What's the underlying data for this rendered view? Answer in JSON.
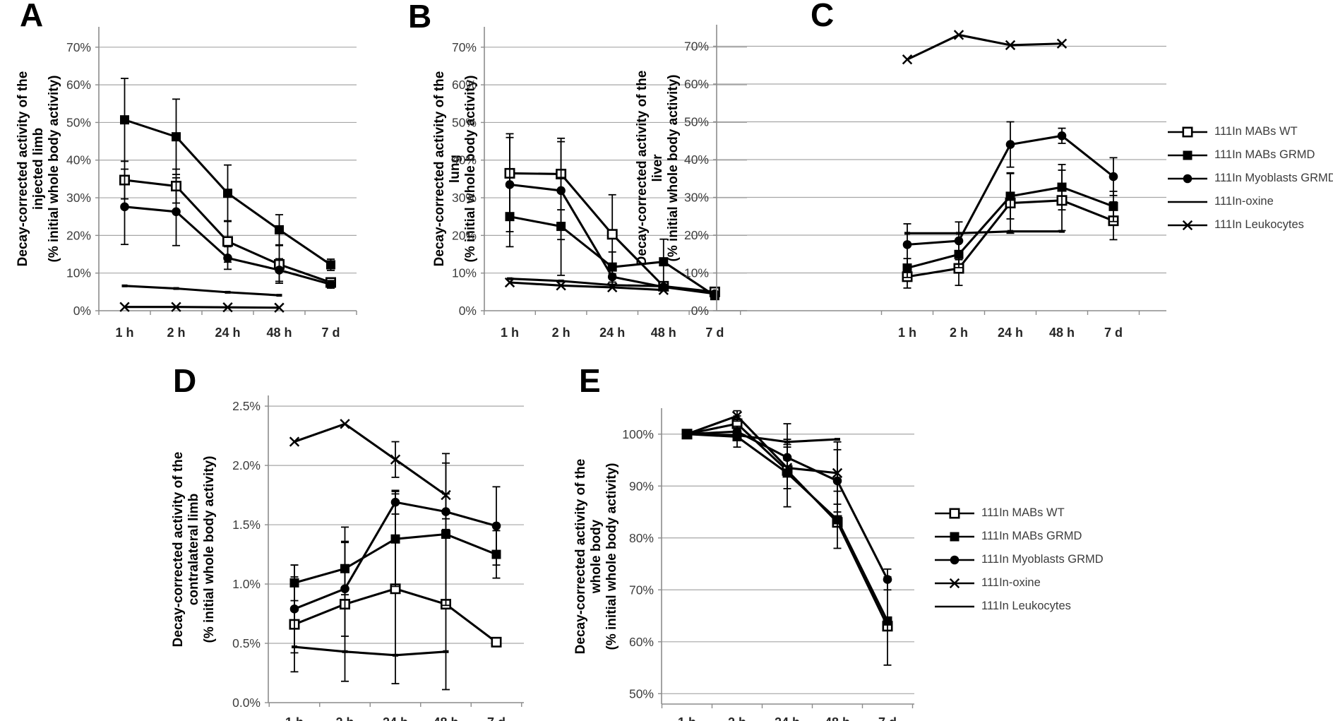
{
  "figure": {
    "background": "#ffffff"
  },
  "x_categories": [
    "1 h",
    "2 h",
    "24 h",
    "48 h",
    "7 d"
  ],
  "colors": {
    "series": "#000000",
    "gridline": "#a6a6a6",
    "axis": "#8c8c8c",
    "tick_text": "#3d3d3d"
  },
  "legends": [
    {
      "name": "legend-top",
      "items": [
        {
          "label": "111In MABs WT",
          "marker": "square-open"
        },
        {
          "label": "111In MABs GRMD",
          "marker": "square-filled"
        },
        {
          "label": "111In Myoblasts GRMD",
          "marker": "circle-filled"
        },
        {
          "label": "111In-oxine",
          "marker": "none"
        },
        {
          "label": "111In Leukocytes",
          "marker": "x"
        }
      ]
    },
    {
      "name": "legend-bottom",
      "items": [
        {
          "label": "111In MABs WT",
          "marker": "square-open"
        },
        {
          "label": "111In MABs GRMD",
          "marker": "square-filled"
        },
        {
          "label": "111In Myoblasts GRMD",
          "marker": "circle-filled"
        },
        {
          "label": "111In-oxine",
          "marker": "x"
        },
        {
          "label": "111In Leukocytes",
          "marker": "none"
        }
      ]
    }
  ],
  "chart_data": [
    {
      "panel": "A",
      "type": "line",
      "grid": true,
      "ylabel_lines": [
        "Decay-corrected  activity of the",
        "injected limb",
        "(% initial whole body activity)"
      ],
      "yticks": {
        "labels": [
          "0%",
          "10%",
          "20%",
          "30%",
          "40%",
          "50%",
          "60%",
          "70%"
        ],
        "values": [
          0,
          10,
          20,
          30,
          40,
          50,
          60,
          70
        ]
      },
      "ylim": [
        0,
        75.4
      ],
      "series": [
        {
          "name": "111In MABs WT",
          "marker": "square-open",
          "values": [
            34.7,
            33.1,
            18.4,
            12.3,
            7.5
          ],
          "err": [
            5,
            4.5,
            5.5,
            5,
            1
          ]
        },
        {
          "name": "111In MABs GRMD",
          "marker": "square-filled",
          "values": [
            50.7,
            46.2,
            31.2,
            21.5,
            12.2
          ],
          "err": [
            11,
            10,
            7.5,
            4,
            1.5
          ]
        },
        {
          "name": "111In Myoblasts GRMD",
          "marker": "circle-filled",
          "values": [
            27.6,
            26.3,
            14,
            10.8,
            7
          ],
          "err": [
            10,
            9,
            3,
            3,
            1
          ]
        },
        {
          "name": "111In-oxine",
          "marker": "dash",
          "values": [
            6.6,
            5.9,
            4.9,
            4.1,
            null
          ],
          "err": [
            0,
            0,
            0,
            0,
            0
          ]
        },
        {
          "name": "111In Leukocytes",
          "marker": "x",
          "values": [
            1,
            1,
            0.9,
            0.8,
            null
          ],
          "err": [
            0,
            0,
            0,
            0,
            0
          ]
        }
      ]
    },
    {
      "panel": "B",
      "type": "line",
      "grid": true,
      "ylabel_lines": [
        "Decay-corrected activity of the",
        "lung",
        "(% initial whole body activity)"
      ],
      "yticks": {
        "labels": [
          "0%",
          "10%",
          "20%",
          "30%",
          "40%",
          "50%",
          "60%",
          "70%"
        ],
        "values": [
          0,
          10,
          20,
          30,
          40,
          50,
          60,
          70
        ]
      },
      "ylim": [
        0,
        75.4
      ],
      "series": [
        {
          "name": "111In MABs WT",
          "marker": "square-open",
          "values": [
            36.5,
            36.3,
            20.3,
            6.5,
            5
          ],
          "err": [
            10.5,
            9.5,
            10.5,
            0,
            0
          ]
        },
        {
          "name": "111In MABs GRMD",
          "marker": "square-filled",
          "values": [
            25,
            22.4,
            11.6,
            13,
            4
          ],
          "err": [
            8,
            13,
            4,
            6,
            0
          ]
        },
        {
          "name": "111In Myoblasts GRMD",
          "marker": "circle-filled",
          "values": [
            33.5,
            31.9,
            9,
            6.3,
            4.5
          ],
          "err": [
            12.5,
            13,
            2,
            0,
            0
          ]
        },
        {
          "name": "111In-oxine",
          "marker": "dash",
          "values": [
            8.5,
            7.9,
            6.8,
            6.5,
            null
          ],
          "err": [
            0,
            0,
            0,
            0,
            0
          ]
        },
        {
          "name": "111In Leukocytes",
          "marker": "x",
          "values": [
            7.5,
            6.7,
            6.2,
            5.5,
            null
          ],
          "err": [
            0,
            0,
            0,
            0,
            0
          ]
        }
      ]
    },
    {
      "panel": "C",
      "type": "line",
      "grid": true,
      "ylabel_lines": [
        "Decay-corrected  activity of the",
        "liver",
        "(% initial whole body activity)"
      ],
      "yticks": {
        "labels": [
          "0%",
          "10%",
          "20%",
          "30%",
          "40%",
          "50%",
          "60%",
          "70%"
        ],
        "values": [
          0,
          10,
          20,
          30,
          40,
          50,
          60,
          70
        ]
      },
      "ylim": [
        0,
        75.7
      ],
      "series": [
        {
          "name": "111In MABs WT",
          "marker": "square-open",
          "values": [
            9,
            11.2,
            28.5,
            29.2,
            23.8
          ],
          "err": [
            3,
            4.5,
            8,
            8,
            5
          ]
        },
        {
          "name": "111In MABs GRMD",
          "marker": "square-filled",
          "values": [
            11.3,
            14.9,
            30.3,
            32.7,
            27.6
          ],
          "err": [
            2.5,
            3.5,
            6,
            6,
            4
          ]
        },
        {
          "name": "111In Myoblasts GRMD",
          "marker": "circle-filled",
          "values": [
            17.5,
            18.5,
            44,
            46.3,
            35.5
          ],
          "err": [
            5.5,
            5,
            6,
            2,
            5
          ]
        },
        {
          "name": "111In-oxine",
          "marker": "dash",
          "values": [
            20.5,
            20.5,
            21,
            21,
            null
          ],
          "err": [
            0,
            0,
            0,
            0,
            0
          ]
        },
        {
          "name": "111In Leukocytes",
          "marker": "x",
          "values": [
            66.5,
            73,
            70.3,
            70.7,
            null
          ],
          "err": [
            0,
            0,
            0,
            0,
            0
          ]
        }
      ]
    },
    {
      "panel": "D",
      "type": "line",
      "grid": true,
      "ylabel_lines": [
        "Decay-corrected  activity of the",
        "contralateral limb",
        "(% initial whole body activity)"
      ],
      "yticks": {
        "labels": [
          "0.0%",
          "0.5%",
          "1.0%",
          "1.5%",
          "2.0%",
          "2.5%"
        ],
        "values": [
          0,
          0.5,
          1,
          1.5,
          2,
          2.5
        ]
      },
      "ylim": [
        0,
        2.59
      ],
      "series": [
        {
          "name": "111In MABs WT",
          "marker": "square-open",
          "values": [
            0.66,
            0.83,
            0.96,
            0.83,
            0.51
          ],
          "err": [
            0.4,
            0.65,
            0.8,
            0.72,
            0
          ]
        },
        {
          "name": "111In MABs GRMD",
          "marker": "square-filled",
          "values": [
            1.01,
            1.13,
            1.38,
            1.42,
            1.25
          ],
          "err": [
            0.15,
            0.22,
            0.4,
            0.6,
            0.2
          ]
        },
        {
          "name": "111In Myoblasts GRMD",
          "marker": "circle-filled",
          "values": [
            0.79,
            0.96,
            1.69,
            1.61,
            1.49
          ],
          "err": [
            0.37,
            0.4,
            0.1,
            0.15,
            0.33
          ]
        },
        {
          "name": "111In-oxine",
          "marker": "x",
          "values": [
            2.2,
            2.35,
            2.05,
            1.75,
            null
          ],
          "err": [
            0,
            0,
            0.15,
            0.35,
            0
          ]
        },
        {
          "name": "111In Leukocytes",
          "marker": "dash",
          "values": [
            0.47,
            0.43,
            0.4,
            0.43,
            null
          ],
          "err": [
            0,
            0,
            0,
            0,
            0
          ]
        }
      ]
    },
    {
      "panel": "E",
      "type": "line",
      "grid": true,
      "ylabel_lines": [
        "Decay-corrected  activity of the",
        "whole body",
        "(% initial whole body activity)"
      ],
      "yticks": {
        "labels": [
          "50%",
          "60%",
          "70%",
          "80%",
          "90%",
          "100%"
        ],
        "values": [
          50,
          60,
          70,
          80,
          90,
          100
        ]
      },
      "ylim": [
        48,
        105
      ],
      "series": [
        {
          "name": "111In MABs WT",
          "marker": "square-open",
          "values": [
            100,
            102,
            93,
            83,
            63
          ],
          "err": [
            0,
            1.5,
            0,
            0,
            0
          ]
        },
        {
          "name": "111In MABs GRMD",
          "marker": "square-filled",
          "values": [
            100,
            99.5,
            92.5,
            83.5,
            64
          ],
          "err": [
            0,
            2,
            6.5,
            5.5,
            8.5
          ]
        },
        {
          "name": "111In Myoblasts GRMD",
          "marker": "circle-filled",
          "values": [
            100,
            100.5,
            95.5,
            91,
            72
          ],
          "err": [
            0,
            1,
            2.5,
            6,
            2
          ]
        },
        {
          "name": "111In-oxine",
          "marker": "x",
          "values": [
            100,
            103.5,
            93.5,
            92.5,
            null
          ],
          "err": [
            0,
            1,
            4,
            6,
            0
          ]
        },
        {
          "name": "111In Leukocytes",
          "marker": "dash",
          "values": [
            100,
            99.8,
            98.5,
            99,
            null
          ],
          "err": [
            0,
            0,
            3.5,
            0,
            0
          ]
        }
      ]
    }
  ]
}
